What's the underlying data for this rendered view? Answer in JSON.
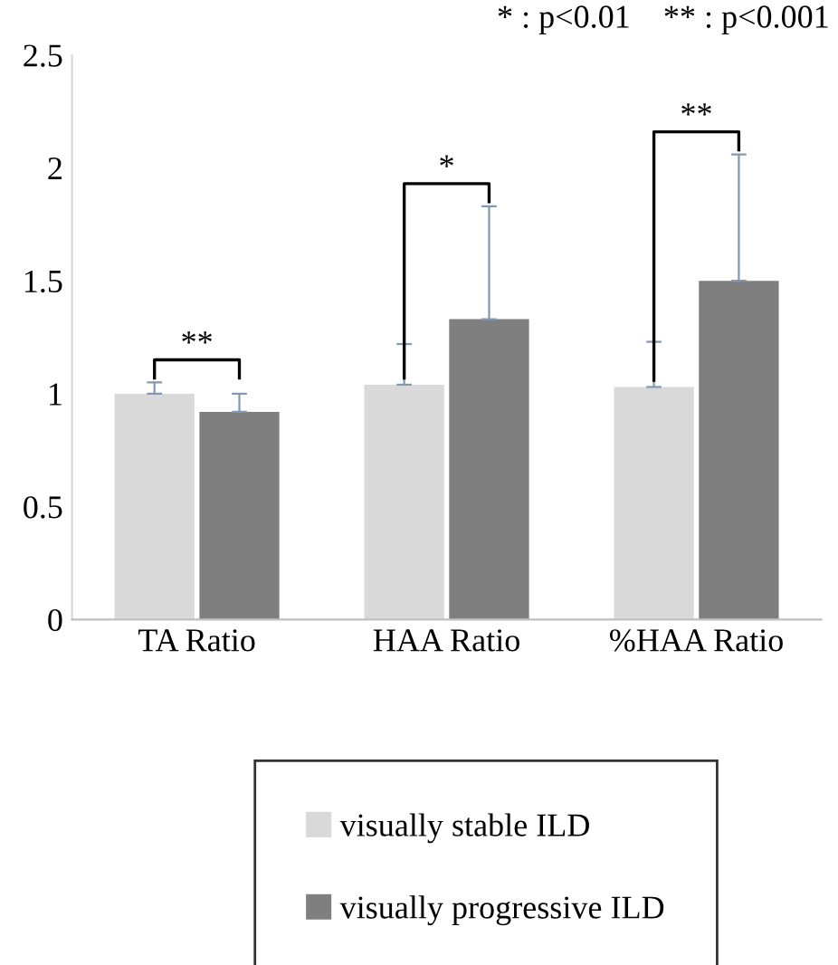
{
  "chart_data": {
    "type": "bar",
    "categories": [
      "TA Ratio",
      "HAA Ratio",
      "%HAA Ratio"
    ],
    "series": [
      {
        "name": "visually stable ILD",
        "color": "#d9d9d9",
        "values": [
          1.0,
          1.04,
          1.03
        ],
        "errors": [
          [
            1.0,
            1.05
          ],
          [
            1.04,
            1.22
          ],
          [
            1.03,
            1.23
          ]
        ]
      },
      {
        "name": "visually progressive ILD",
        "color": "#7f7f7f",
        "values": [
          0.92,
          1.33,
          1.5
        ],
        "errors": [
          [
            0.92,
            1.0
          ],
          [
            1.33,
            1.83
          ],
          [
            1.5,
            2.06
          ]
        ]
      }
    ],
    "ylim": [
      0,
      2.5
    ],
    "yticks": [
      0,
      0.5,
      1,
      1.5,
      2,
      2.5
    ],
    "legend": "bottom",
    "grid": false,
    "annotations": [
      "* : p<0.01    ** : p<0.001",
      "**",
      "*",
      "**"
    ]
  }
}
